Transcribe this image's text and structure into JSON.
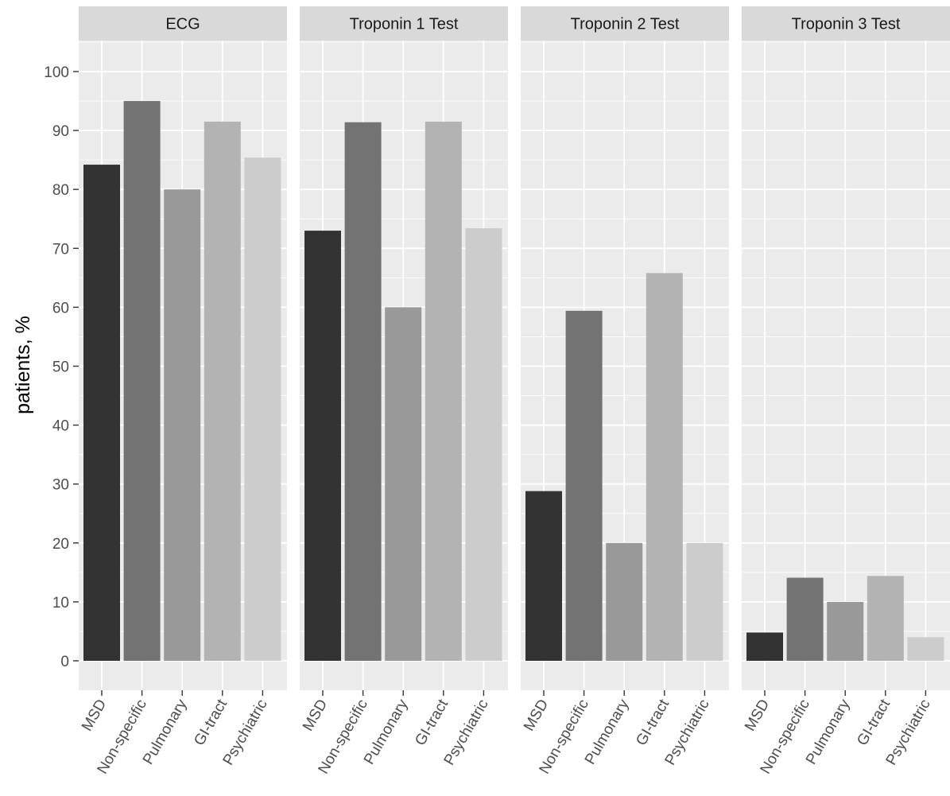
{
  "chart_data": {
    "type": "bar",
    "ylabel": "patients, %",
    "xlabel": "",
    "ylim": [
      -5,
      105
    ],
    "yticks": [
      0,
      10,
      20,
      30,
      40,
      50,
      60,
      70,
      80,
      90,
      100
    ],
    "categories": [
      "MSD",
      "Non-specific",
      "Pulmonary",
      "GI-tract",
      "Psychiatric"
    ],
    "category_colors": [
      "#333333",
      "#737373",
      "#999999",
      "#b3b3b3",
      "#cccccc"
    ],
    "panel_background": "#ebebeb",
    "strip_background": "#d9d9d9",
    "grid": true,
    "legend": "none",
    "facets": [
      {
        "name": "ECG",
        "values": [
          84.2,
          95.0,
          80.0,
          91.5,
          85.4
        ]
      },
      {
        "name": "Troponin 1 Test",
        "values": [
          73.0,
          91.4,
          60.0,
          91.5,
          73.4
        ]
      },
      {
        "name": "Troponin 2 Test",
        "values": [
          28.8,
          59.4,
          20.0,
          65.8,
          20.0
        ]
      },
      {
        "name": "Troponin 3 Test",
        "values": [
          4.8,
          14.1,
          10.0,
          14.4,
          4.0
        ]
      }
    ]
  }
}
